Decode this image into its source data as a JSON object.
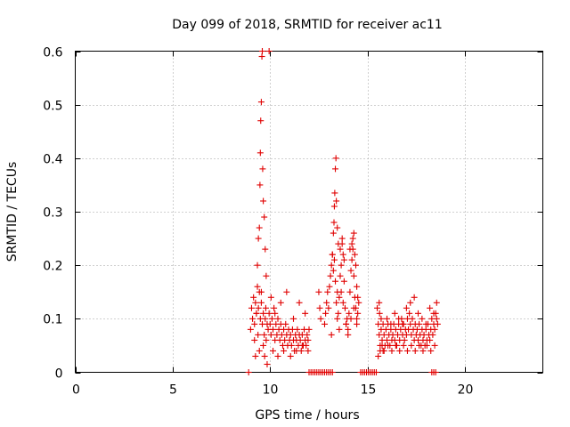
{
  "chart_data": {
    "type": "scatter",
    "title": "Day 099 of 2018, SRMTID for receiver ac11",
    "xlabel": "GPS time / hours",
    "ylabel": "SRMTID / TECUs",
    "xlim": [
      0,
      24
    ],
    "ylim": [
      0,
      0.6
    ],
    "xticks": [
      "0",
      "5",
      "10",
      "15",
      "20"
    ],
    "yticks": [
      "0",
      "0.1",
      "0.2",
      "0.3",
      "0.4",
      "0.5",
      "0.6"
    ],
    "grid": true,
    "marker": "plus",
    "color": "#e00000",
    "series": [
      {
        "x": [
          9.0,
          9.05,
          9.1,
          9.15,
          9.2,
          9.25,
          9.3,
          9.35,
          9.4,
          9.45,
          9.5,
          9.55,
          9.6,
          9.65,
          9.7,
          9.75,
          9.8,
          9.85,
          9.9,
          9.95,
          10.0,
          10.05,
          10.1,
          10.15,
          10.2,
          10.25,
          10.3,
          10.35,
          10.4,
          10.45,
          10.5,
          10.55,
          10.6,
          10.65,
          10.7,
          10.75,
          10.8,
          10.85,
          10.9,
          10.95,
          11.0,
          11.05,
          11.1,
          11.15,
          11.2,
          11.25,
          11.3,
          11.35,
          11.4,
          11.45,
          11.5,
          11.55,
          11.6,
          11.65,
          11.7,
          11.75,
          11.8,
          11.85,
          11.9,
          11.95,
          12.0,
          9.35,
          9.4,
          9.45,
          9.48,
          9.5,
          9.52,
          9.55,
          9.58,
          9.6,
          9.62,
          9.65,
          9.7,
          9.75,
          9.8,
          9.95,
          9.2,
          9.25,
          9.3,
          9.38,
          9.45,
          9.55,
          9.65,
          9.72,
          9.78,
          9.85,
          10.05,
          10.15,
          10.25,
          10.4,
          10.55,
          10.7,
          10.85,
          11.05,
          11.2,
          11.35,
          11.5,
          11.65,
          11.8,
          11.95,
          12.5,
          12.55,
          12.6,
          12.8,
          12.85,
          12.9,
          12.95,
          13.0,
          13.05,
          13.1,
          13.15,
          13.2,
          13.25,
          13.3,
          13.35,
          13.4,
          13.45,
          13.5,
          13.55,
          13.6,
          13.65,
          13.7,
          13.75,
          13.8,
          13.85,
          13.9,
          13.95,
          14.0,
          14.05,
          14.1,
          14.15,
          14.2,
          14.25,
          14.3,
          14.35,
          14.4,
          14.45,
          14.5,
          14.55,
          13.2,
          13.25,
          13.28,
          13.3,
          13.32,
          13.35,
          13.38,
          13.4,
          13.45,
          13.5,
          13.6,
          13.7,
          13.8,
          14.1,
          14.2,
          14.25,
          14.3,
          14.35,
          14.4,
          14.45,
          14.5,
          13.15,
          13.45,
          13.55,
          13.65,
          13.75,
          13.9,
          14.0,
          14.15,
          14.3,
          14.45,
          15.5,
          15.55,
          15.6,
          15.65,
          15.7,
          15.75,
          15.8,
          15.85,
          15.9,
          15.95,
          16.0,
          16.05,
          16.1,
          16.15,
          16.2,
          16.25,
          16.3,
          16.35,
          16.4,
          16.45,
          16.5,
          16.55,
          16.6,
          16.65,
          16.7,
          16.75,
          16.8,
          16.85,
          16.9,
          16.95,
          17.0,
          17.05,
          17.1,
          17.15,
          17.2,
          17.25,
          17.3,
          17.35,
          17.4,
          17.45,
          17.5,
          17.55,
          17.6,
          17.65,
          17.7,
          17.75,
          17.8,
          17.85,
          17.9,
          17.95,
          18.0,
          18.05,
          18.1,
          18.15,
          18.2,
          18.25,
          18.3,
          18.35,
          18.4,
          18.45,
          18.5,
          18.55,
          18.6,
          15.55,
          15.65,
          15.75,
          15.85,
          16.05,
          16.25,
          16.45,
          16.65,
          16.85,
          17.05,
          17.25,
          17.45,
          17.65,
          17.85,
          18.05,
          18.25,
          18.45,
          15.6,
          15.62,
          15.7,
          15.8,
          16.0,
          16.2,
          16.4,
          16.6,
          16.8,
          17.0,
          17.2,
          17.4,
          17.6,
          17.8,
          18.0,
          18.2,
          18.4,
          18.55,
          8.9,
          12.0,
          12.1,
          12.2,
          12.3,
          12.4,
          12.5,
          12.6,
          12.7,
          12.8,
          12.9,
          13.0,
          13.1,
          13.2,
          14.65,
          14.75,
          14.85,
          14.95,
          15.05,
          15.15,
          15.25,
          15.35,
          15.45,
          18.3,
          18.4,
          18.5
        ],
        "y": [
          0.08,
          0.12,
          0.1,
          0.14,
          0.09,
          0.13,
          0.11,
          0.16,
          0.12,
          0.15,
          0.1,
          0.13,
          0.09,
          0.11,
          0.07,
          0.1,
          0.06,
          0.09,
          0.08,
          0.11,
          0.09,
          0.07,
          0.1,
          0.08,
          0.12,
          0.06,
          0.09,
          0.07,
          0.1,
          0.08,
          0.06,
          0.09,
          0.07,
          0.05,
          0.08,
          0.06,
          0.09,
          0.07,
          0.05,
          0.08,
          0.06,
          0.07,
          0.05,
          0.08,
          0.06,
          0.04,
          0.07,
          0.06,
          0.08,
          0.05,
          0.07,
          0.06,
          0.04,
          0.07,
          0.05,
          0.08,
          0.06,
          0.05,
          0.07,
          0.06,
          0.08,
          0.2,
          0.25,
          0.27,
          0.35,
          0.41,
          0.47,
          0.505,
          0.59,
          0.6,
          0.38,
          0.32,
          0.29,
          0.23,
          0.18,
          0.6,
          0.06,
          0.03,
          0.11,
          0.07,
          0.04,
          0.15,
          0.05,
          0.03,
          0.12,
          0.015,
          0.14,
          0.04,
          0.11,
          0.03,
          0.13,
          0.04,
          0.15,
          0.03,
          0.1,
          0.04,
          0.13,
          0.05,
          0.11,
          0.04,
          0.15,
          0.12,
          0.1,
          0.09,
          0.11,
          0.13,
          0.15,
          0.12,
          0.16,
          0.18,
          0.2,
          0.22,
          0.19,
          0.21,
          0.17,
          0.13,
          0.15,
          0.11,
          0.14,
          0.18,
          0.2,
          0.24,
          0.22,
          0.17,
          0.12,
          0.09,
          0.1,
          0.08,
          0.11,
          0.15,
          0.19,
          0.21,
          0.23,
          0.18,
          0.14,
          0.12,
          0.1,
          0.11,
          0.13,
          0.22,
          0.26,
          0.28,
          0.31,
          0.335,
          0.38,
          0.4,
          0.32,
          0.27,
          0.24,
          0.23,
          0.25,
          0.21,
          0.23,
          0.24,
          0.25,
          0.26,
          0.22,
          0.2,
          0.16,
          0.14,
          0.07,
          0.1,
          0.08,
          0.15,
          0.13,
          0.09,
          0.07,
          0.1,
          0.12,
          0.09,
          0.12,
          0.09,
          0.07,
          0.05,
          0.08,
          0.06,
          0.04,
          0.07,
          0.05,
          0.08,
          0.06,
          0.09,
          0.07,
          0.05,
          0.08,
          0.06,
          0.07,
          0.09,
          0.06,
          0.08,
          0.05,
          0.07,
          0.09,
          0.06,
          0.08,
          0.1,
          0.07,
          0.09,
          0.06,
          0.08,
          0.07,
          0.1,
          0.08,
          0.11,
          0.09,
          0.07,
          0.1,
          0.08,
          0.06,
          0.09,
          0.07,
          0.08,
          0.06,
          0.09,
          0.07,
          0.05,
          0.08,
          0.06,
          0.07,
          0.05,
          0.08,
          0.06,
          0.09,
          0.07,
          0.06,
          0.08,
          0.1,
          0.07,
          0.09,
          0.08,
          0.11,
          0.1,
          0.09,
          0.03,
          0.04,
          0.05,
          0.04,
          0.05,
          0.04,
          0.05,
          0.04,
          0.05,
          0.04,
          0.05,
          0.04,
          0.05,
          0.04,
          0.05,
          0.04,
          0.05,
          0.13,
          0.11,
          0.1,
          0.09,
          0.1,
          0.09,
          0.11,
          0.1,
          0.09,
          0.12,
          0.13,
          0.14,
          0.11,
          0.1,
          0.09,
          0.12,
          0.11,
          0.13,
          0,
          0,
          0,
          0,
          0,
          0,
          0,
          0,
          0,
          0,
          0,
          0,
          0,
          0,
          0,
          0,
          0,
          0,
          0,
          0,
          0,
          0,
          0,
          0,
          0,
          0
        ]
      }
    ]
  }
}
